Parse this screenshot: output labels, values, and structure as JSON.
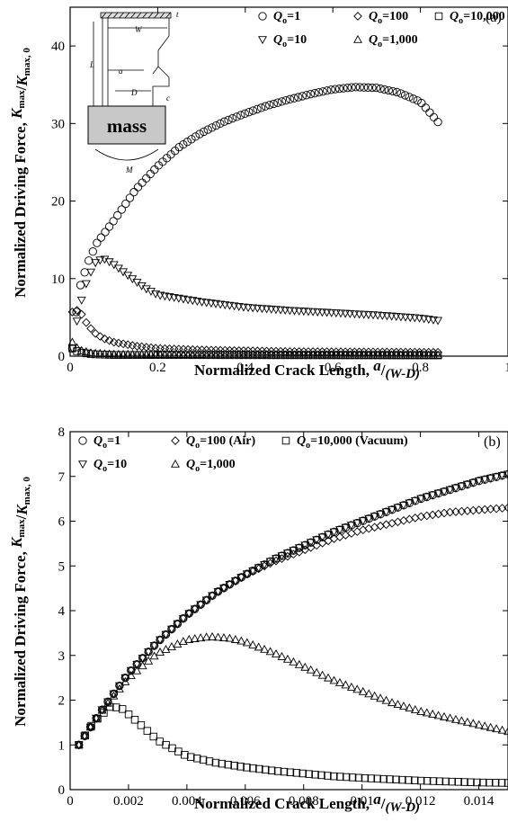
{
  "chart_data": [
    {
      "type": "scatter",
      "panel_label": "(a)",
      "xlabel": "Normalized Crack Length,",
      "xlabel_math": {
        "num": "a",
        "den": "(W-D)"
      },
      "ylabel": "Normalized Driving Force,",
      "ylabel_math": {
        "num": "K",
        "num_sub": "max",
        "den": "K",
        "den_sub": "max, 0"
      },
      "xlim": [
        0,
        1
      ],
      "ylim": [
        0,
        45
      ],
      "xticks": [
        0,
        0.2,
        0.4,
        0.6,
        0.8,
        1
      ],
      "xtick_labels": [
        "0",
        "0.2",
        "0.4",
        "0.6",
        "0.8",
        "1"
      ],
      "yticks": [
        0,
        10,
        20,
        30,
        40
      ],
      "ytick_labels": [
        "0",
        "10",
        "20",
        "30",
        "40"
      ],
      "grid": false,
      "legend_placement": "top-right",
      "inset": {
        "label": "mass",
        "letters": [
          "W",
          "t",
          "L",
          "a",
          "D",
          "c",
          "M"
        ]
      },
      "series": [
        {
          "name": "Q",
          "name_sub": "o",
          "name_val": "=1",
          "marker": "circle",
          "x_range": [
            0.005,
            0.84
          ],
          "n": 90,
          "points": [
            [
              0.005,
              1.0
            ],
            [
              0.02,
              8.5
            ],
            [
              0.04,
              12.0
            ],
            [
              0.06,
              14.5
            ],
            [
              0.1,
              17.5
            ],
            [
              0.15,
              21.5
            ],
            [
              0.2,
              24.5
            ],
            [
              0.25,
              27.0
            ],
            [
              0.3,
              28.8
            ],
            [
              0.35,
              30.2
            ],
            [
              0.4,
              31.3
            ],
            [
              0.45,
              32.3
            ],
            [
              0.5,
              33.1
            ],
            [
              0.55,
              33.8
            ],
            [
              0.6,
              34.4
            ],
            [
              0.65,
              34.7
            ],
            [
              0.7,
              34.6
            ],
            [
              0.75,
              34.0
            ],
            [
              0.8,
              32.8
            ],
            [
              0.84,
              30.2
            ]
          ]
        },
        {
          "name": "Q",
          "name_sub": "o",
          "name_val": "=10",
          "marker": "triangle-down",
          "x_range": [
            0.005,
            0.84
          ],
          "n": 80,
          "points": [
            [
              0.005,
              1.0
            ],
            [
              0.02,
              6.0
            ],
            [
              0.04,
              10.0
            ],
            [
              0.06,
              12.3
            ],
            [
              0.08,
              12.5
            ],
            [
              0.1,
              11.8
            ],
            [
              0.13,
              10.5
            ],
            [
              0.17,
              8.8
            ],
            [
              0.2,
              7.9
            ],
            [
              0.3,
              7.0
            ],
            [
              0.4,
              6.3
            ],
            [
              0.5,
              5.9
            ],
            [
              0.6,
              5.6
            ],
            [
              0.7,
              5.3
            ],
            [
              0.8,
              4.9
            ],
            [
              0.84,
              4.6
            ]
          ]
        },
        {
          "name": "Q",
          "name_sub": "o",
          "name_val": "=100",
          "marker": "diamond",
          "x_range": [
            0.005,
            0.84
          ],
          "n": 80,
          "points": [
            [
              0.005,
              5.7
            ],
            [
              0.02,
              6.0
            ],
            [
              0.04,
              4.0
            ],
            [
              0.06,
              2.8
            ],
            [
              0.08,
              2.2
            ],
            [
              0.1,
              1.8
            ],
            [
              0.15,
              1.3
            ],
            [
              0.2,
              1.0
            ],
            [
              0.3,
              0.8
            ],
            [
              0.5,
              0.6
            ],
            [
              0.84,
              0.5
            ]
          ]
        },
        {
          "name": "Q",
          "name_sub": "o",
          "name_val": "=1,000",
          "marker": "triangle-up",
          "x_range": [
            0.005,
            0.84
          ],
          "n": 80,
          "points": [
            [
              0.005,
              1.8
            ],
            [
              0.02,
              0.8
            ],
            [
              0.05,
              0.4
            ],
            [
              0.1,
              0.25
            ],
            [
              0.3,
              0.2
            ],
            [
              0.84,
              0.15
            ]
          ]
        },
        {
          "name": "Q",
          "name_sub": "o",
          "name_val": "=10,000",
          "marker": "square",
          "x_range": [
            0.005,
            0.84
          ],
          "n": 80,
          "points": [
            [
              0.005,
              1.0
            ],
            [
              0.02,
              0.5
            ],
            [
              0.05,
              0.25
            ],
            [
              0.1,
              0.15
            ],
            [
              0.84,
              0.1
            ]
          ]
        }
      ]
    },
    {
      "type": "scatter",
      "panel_label": "(b)",
      "xlabel": "Normalized Crack Length,",
      "xlabel_math": {
        "num": "a",
        "den": "(W-D)"
      },
      "ylabel": "Normalized Driving Force,",
      "ylabel_math": {
        "num": "K",
        "num_sub": "max",
        "den": "K",
        "den_sub": "max, 0"
      },
      "xlim": [
        0,
        0.015
      ],
      "ylim": [
        0,
        8
      ],
      "xticks": [
        0,
        0.002,
        0.004,
        0.006,
        0.008,
        0.01,
        0.012,
        0.014
      ],
      "xtick_labels": [
        "0",
        "0.002",
        "0.004",
        "0.006",
        "0.008",
        "0.01",
        "0.012",
        "0.014"
      ],
      "yticks": [
        0,
        1,
        2,
        3,
        4,
        5,
        6,
        7,
        8
      ],
      "ytick_labels": [
        "0",
        "1",
        "2",
        "3",
        "4",
        "5",
        "6",
        "7",
        "8"
      ],
      "grid": false,
      "legend_placement": "top",
      "series": [
        {
          "name": "Q",
          "name_sub": "o",
          "name_val": "=1",
          "marker": "circle",
          "x_range": [
            0.0003,
            0.015
          ],
          "n": 75,
          "points": [
            [
              0.0003,
              1.0
            ],
            [
              0.001,
              1.7
            ],
            [
              0.002,
              2.6
            ],
            [
              0.003,
              3.3
            ],
            [
              0.004,
              3.9
            ],
            [
              0.005,
              4.4
            ],
            [
              0.006,
              4.8
            ],
            [
              0.007,
              5.15
            ],
            [
              0.008,
              5.45
            ],
            [
              0.009,
              5.75
            ],
            [
              0.01,
              6.0
            ],
            [
              0.011,
              6.25
            ],
            [
              0.012,
              6.5
            ],
            [
              0.013,
              6.7
            ],
            [
              0.014,
              6.9
            ],
            [
              0.015,
              7.05
            ]
          ]
        },
        {
          "name": "Q",
          "name_sub": "o",
          "name_val": "=10",
          "marker": "triangle-down",
          "x_range": [
            0.0003,
            0.015
          ],
          "n": 75,
          "points": [
            [
              0.0003,
              1.0
            ],
            [
              0.001,
              1.7
            ],
            [
              0.002,
              2.6
            ],
            [
              0.003,
              3.3
            ],
            [
              0.004,
              3.9
            ],
            [
              0.005,
              4.4
            ],
            [
              0.006,
              4.8
            ],
            [
              0.007,
              5.15
            ],
            [
              0.008,
              5.45
            ],
            [
              0.009,
              5.75
            ],
            [
              0.01,
              6.0
            ],
            [
              0.011,
              6.25
            ],
            [
              0.012,
              6.5
            ],
            [
              0.013,
              6.7
            ],
            [
              0.014,
              6.9
            ],
            [
              0.015,
              7.05
            ]
          ]
        },
        {
          "name": "Q",
          "name_sub": "o",
          "name_val": "=100 (Air)",
          "marker": "diamond",
          "x_range": [
            0.0003,
            0.015
          ],
          "n": 75,
          "points": [
            [
              0.0003,
              1.0
            ],
            [
              0.001,
              1.7
            ],
            [
              0.002,
              2.6
            ],
            [
              0.003,
              3.3
            ],
            [
              0.004,
              3.9
            ],
            [
              0.005,
              4.4
            ],
            [
              0.006,
              4.8
            ],
            [
              0.007,
              5.1
            ],
            [
              0.008,
              5.35
            ],
            [
              0.009,
              5.6
            ],
            [
              0.01,
              5.8
            ],
            [
              0.011,
              5.95
            ],
            [
              0.012,
              6.1
            ],
            [
              0.013,
              6.2
            ],
            [
              0.014,
              6.25
            ],
            [
              0.015,
              6.3
            ]
          ]
        },
        {
          "name": "Q",
          "name_sub": "o",
          "name_val": "=1,000",
          "marker": "triangle-up",
          "x_range": [
            0.0003,
            0.015
          ],
          "n": 75,
          "points": [
            [
              0.0003,
              1.0
            ],
            [
              0.001,
              1.7
            ],
            [
              0.002,
              2.5
            ],
            [
              0.003,
              3.05
            ],
            [
              0.004,
              3.35
            ],
            [
              0.0048,
              3.42
            ],
            [
              0.0055,
              3.38
            ],
            [
              0.006,
              3.3
            ],
            [
              0.007,
              3.05
            ],
            [
              0.008,
              2.75
            ],
            [
              0.009,
              2.45
            ],
            [
              0.01,
              2.2
            ],
            [
              0.011,
              1.95
            ],
            [
              0.012,
              1.75
            ],
            [
              0.013,
              1.6
            ],
            [
              0.014,
              1.45
            ],
            [
              0.015,
              1.3
            ]
          ]
        },
        {
          "name": "Q",
          "name_sub": "o",
          "name_val": "=10,000 (Vacuum)",
          "marker": "square",
          "x_range": [
            0.0003,
            0.015
          ],
          "n": 70,
          "points": [
            [
              0.0003,
              1.0
            ],
            [
              0.0008,
              1.5
            ],
            [
              0.0014,
              1.87
            ],
            [
              0.0018,
              1.8
            ],
            [
              0.0025,
              1.4
            ],
            [
              0.003,
              1.1
            ],
            [
              0.004,
              0.75
            ],
            [
              0.005,
              0.6
            ],
            [
              0.006,
              0.5
            ],
            [
              0.007,
              0.42
            ],
            [
              0.008,
              0.36
            ],
            [
              0.009,
              0.3
            ],
            [
              0.01,
              0.26
            ],
            [
              0.011,
              0.23
            ],
            [
              0.012,
              0.2
            ],
            [
              0.013,
              0.18
            ],
            [
              0.014,
              0.16
            ],
            [
              0.015,
              0.15
            ]
          ]
        }
      ]
    }
  ]
}
